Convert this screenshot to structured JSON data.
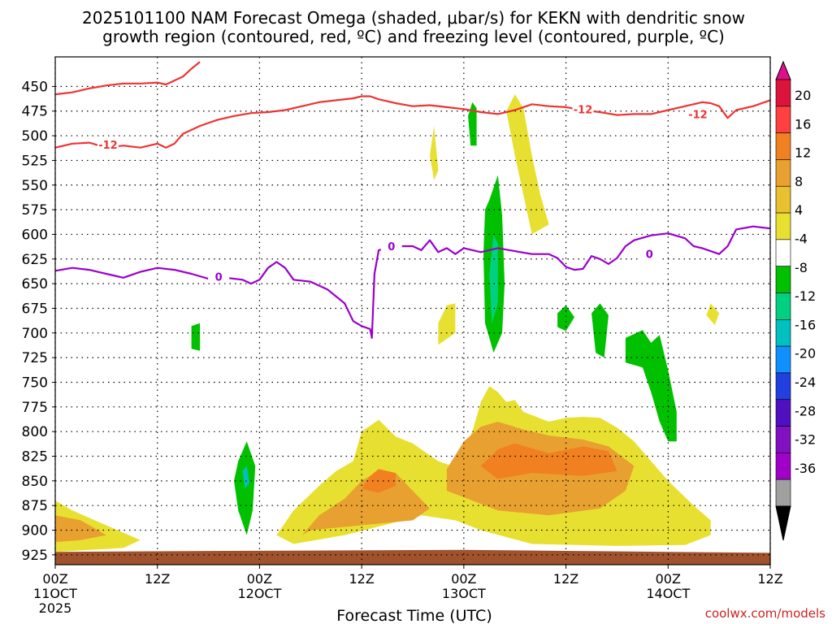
{
  "chart_data": {
    "type": "time-height cross-section",
    "title_line1": "2025101100 NAM Forecast Omega (shaded, μbar/s) for KEKN with dendritic snow",
    "title_line2": "growth region (contoured, red, ºC) and freezing level (contoured, purple, ºC)",
    "xlabel": "Forecast Time (UTC)",
    "credit": "coolwx.com/models",
    "x_range_hours": [
      0,
      84
    ],
    "y_range_mb": [
      420,
      935
    ],
    "y_ticks": [
      450,
      475,
      500,
      525,
      550,
      575,
      600,
      625,
      650,
      675,
      700,
      725,
      750,
      775,
      800,
      825,
      850,
      875,
      900,
      925
    ],
    "x_ticks": [
      {
        "h": 0,
        "l1": "00Z",
        "l2": "11OCT",
        "l3": "2025"
      },
      {
        "h": 12,
        "l1": "12Z",
        "l2": "",
        "l3": ""
      },
      {
        "h": 24,
        "l1": "00Z",
        "l2": "12OCT",
        "l3": ""
      },
      {
        "h": 36,
        "l1": "12Z",
        "l2": "",
        "l3": ""
      },
      {
        "h": 48,
        "l1": "00Z",
        "l2": "13OCT",
        "l3": ""
      },
      {
        "h": 60,
        "l1": "12Z",
        "l2": "",
        "l3": ""
      },
      {
        "h": 72,
        "l1": "00Z",
        "l2": "14OCT",
        "l3": ""
      },
      {
        "h": 84,
        "l1": "12Z",
        "l2": "",
        "l3": ""
      }
    ],
    "colorbar": {
      "labels": [
        "20",
        "16",
        "12",
        "8",
        "4",
        "-4",
        "-8",
        "-12",
        "-16",
        "-20",
        "-24",
        "-28",
        "-32",
        "-36"
      ],
      "colors": [
        "#dc143c",
        "#ff4040",
        "#f08020",
        "#e8a030",
        "#e8c030",
        "#e8e030",
        "#ffffff",
        "#00c000",
        "#00d080",
        "#00c0c0",
        "#1090ff",
        "#2040e0",
        "#5010c0",
        "#8010c0",
        "#a000c8",
        "#a0a0a0"
      ],
      "top_arrow_color": "#e0108c",
      "bottom_arrow_color": "#000000"
    },
    "series": [
      {
        "name": "-12C (red)",
        "color": "#ee3333",
        "label": "-12",
        "points": [
          [
            0,
            458
          ],
          [
            2,
            456
          ],
          [
            4,
            452
          ],
          [
            6,
            449
          ],
          [
            8,
            447
          ],
          [
            10,
            447
          ],
          [
            12,
            446
          ],
          [
            13,
            448
          ],
          [
            14,
            444
          ],
          [
            15,
            440
          ],
          [
            16,
            432
          ],
          [
            17,
            425
          ]
        ]
      },
      {
        "name": "-12C (red)",
        "color": "#ee3333",
        "label": "-12",
        "points": [
          [
            0,
            512
          ],
          [
            2,
            508
          ],
          [
            4,
            507
          ],
          [
            6,
            512
          ],
          [
            8,
            510
          ],
          [
            10,
            512
          ],
          [
            12,
            508
          ],
          [
            13,
            512
          ],
          [
            14,
            508
          ],
          [
            15,
            498
          ],
          [
            17,
            490
          ],
          [
            19,
            484
          ],
          [
            21,
            480
          ],
          [
            23,
            477
          ],
          [
            25,
            476
          ],
          [
            27,
            474
          ],
          [
            29,
            470
          ],
          [
            31,
            466
          ],
          [
            33,
            464
          ],
          [
            35,
            462
          ],
          [
            36,
            460
          ],
          [
            37,
            460
          ],
          [
            38,
            463
          ],
          [
            40,
            467
          ],
          [
            42,
            470
          ],
          [
            44,
            469
          ],
          [
            46,
            471
          ],
          [
            48,
            473
          ],
          [
            50,
            476
          ],
          [
            52,
            478
          ],
          [
            54,
            474
          ],
          [
            56,
            468
          ],
          [
            58,
            470
          ],
          [
            60,
            471
          ],
          [
            62,
            474
          ],
          [
            64,
            476
          ],
          [
            66,
            479
          ],
          [
            68,
            478
          ],
          [
            70,
            478
          ],
          [
            72,
            474
          ],
          [
            74,
            470
          ],
          [
            76,
            466
          ],
          [
            77,
            467
          ],
          [
            78,
            470
          ],
          [
            79,
            482
          ],
          [
            80,
            474
          ],
          [
            82,
            470
          ],
          [
            84,
            464
          ]
        ]
      },
      {
        "name": "0C freezing level (purple)",
        "color": "#9900cc",
        "label": "0",
        "points": [
          [
            0,
            637
          ],
          [
            2,
            634
          ],
          [
            4,
            636
          ],
          [
            6,
            640
          ],
          [
            8,
            644
          ],
          [
            10,
            638
          ],
          [
            12,
            634
          ],
          [
            14,
            636
          ],
          [
            16,
            640
          ],
          [
            18,
            645
          ],
          [
            20,
            644
          ],
          [
            22,
            646
          ],
          [
            23,
            650
          ],
          [
            24,
            646
          ],
          [
            25,
            634
          ],
          [
            26,
            628
          ],
          [
            27,
            634
          ],
          [
            28,
            646
          ],
          [
            30,
            648
          ],
          [
            32,
            656
          ],
          [
            34,
            670
          ],
          [
            35,
            688
          ],
          [
            36,
            693
          ],
          [
            37,
            696
          ],
          [
            37.2,
            705
          ],
          [
            37.5,
            640
          ],
          [
            38,
            616
          ],
          [
            40,
            612
          ],
          [
            42,
            612
          ],
          [
            43,
            616
          ],
          [
            44,
            606
          ],
          [
            45,
            618
          ],
          [
            46,
            614
          ],
          [
            47,
            620
          ],
          [
            48,
            614
          ],
          [
            50,
            618
          ],
          [
            52,
            614
          ],
          [
            54,
            617
          ],
          [
            56,
            620
          ],
          [
            58,
            620
          ],
          [
            59,
            624
          ],
          [
            60,
            633
          ],
          [
            61,
            636
          ],
          [
            62,
            635
          ],
          [
            63,
            622
          ],
          [
            64,
            625
          ],
          [
            65,
            630
          ],
          [
            66,
            624
          ],
          [
            67,
            612
          ],
          [
            68,
            606
          ],
          [
            70,
            601
          ],
          [
            72,
            599
          ],
          [
            74,
            604
          ],
          [
            75,
            612
          ],
          [
            76,
            614
          ],
          [
            78,
            620
          ],
          [
            79,
            612
          ],
          [
            80,
            595
          ],
          [
            82,
            592
          ],
          [
            84,
            594
          ]
        ]
      }
    ],
    "annotations": [
      "-12",
      "-12",
      "-12",
      "0",
      "0",
      "0"
    ]
  }
}
